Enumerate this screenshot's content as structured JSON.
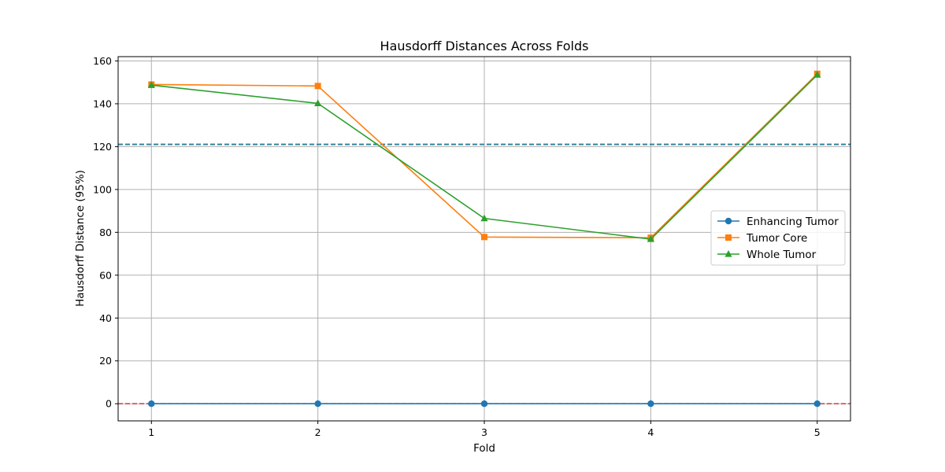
{
  "chart_data": {
    "type": "line",
    "title": "Hausdorff Distances Across Folds",
    "xlabel": "Fold",
    "ylabel": "Hausdorff Distance (95%)",
    "x": [
      1,
      2,
      3,
      4,
      5
    ],
    "x_tick_labels": [
      "1",
      "2",
      "3",
      "4",
      "5"
    ],
    "xlim": [
      0.8,
      5.2
    ],
    "ylim": [
      -8,
      162
    ],
    "y_ticks": [
      0,
      20,
      40,
      60,
      80,
      100,
      120,
      140,
      160
    ],
    "y_tick_labels": [
      "0",
      "20",
      "40",
      "60",
      "80",
      "100",
      "120",
      "140",
      "160"
    ],
    "grid": true,
    "legend_position": "center-right",
    "series": [
      {
        "name": "Enhancing Tumor",
        "values": [
          0,
          0,
          0,
          0,
          0
        ],
        "color": "#1f77b4",
        "marker": "circle"
      },
      {
        "name": "Tumor Core",
        "values": [
          149,
          148.3,
          77.8,
          77.5,
          154
        ],
        "color": "#ff7f0e",
        "marker": "square"
      },
      {
        "name": "Whole Tumor",
        "values": [
          148.7,
          140.2,
          86.5,
          76.8,
          153.5
        ],
        "color": "#2ca02c",
        "marker": "triangle"
      }
    ],
    "reference_lines": [
      {
        "y": 0,
        "color": "#d62728",
        "style": "dashed"
      },
      {
        "y": 121.2,
        "color": "#ff7f0e",
        "style": "dashed"
      },
      {
        "y": 121.0,
        "color": "#2ca02c",
        "style": "dashed"
      },
      {
        "y": 121.0,
        "color": "#1f77b4",
        "style": "dashed"
      }
    ]
  }
}
